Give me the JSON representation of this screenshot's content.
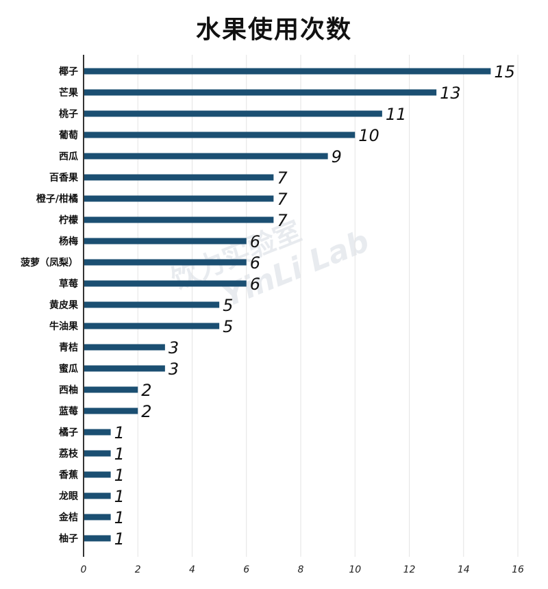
{
  "chart_data": {
    "type": "bar",
    "orientation": "horizontal",
    "title": "水果使用次数",
    "xlabel": "",
    "ylabel": "",
    "xlim": [
      0,
      16
    ],
    "x_ticks": [
      0,
      2,
      4,
      6,
      8,
      10,
      12,
      14,
      16
    ],
    "grid": "vertical",
    "bar_color": "#1b4f72",
    "categories": [
      "椰子",
      "芒果",
      "桃子",
      "葡萄",
      "西瓜",
      "百香果",
      "橙子/柑橘",
      "柠檬",
      "杨梅",
      "菠萝（凤梨）",
      "草莓",
      "黄皮果",
      "牛油果",
      "青桔",
      "蜜瓜",
      "西柚",
      "蓝莓",
      "橘子",
      "荔枝",
      "香蕉",
      "龙眼",
      "金桔",
      "柚子"
    ],
    "values": [
      15,
      13,
      11,
      10,
      9,
      7,
      7,
      7,
      6,
      6,
      6,
      5,
      5,
      3,
      3,
      2,
      2,
      1,
      1,
      1,
      1,
      1,
      1
    ]
  },
  "watermark": {
    "cn": "饮力实验室",
    "en": "YinLi Lab"
  }
}
